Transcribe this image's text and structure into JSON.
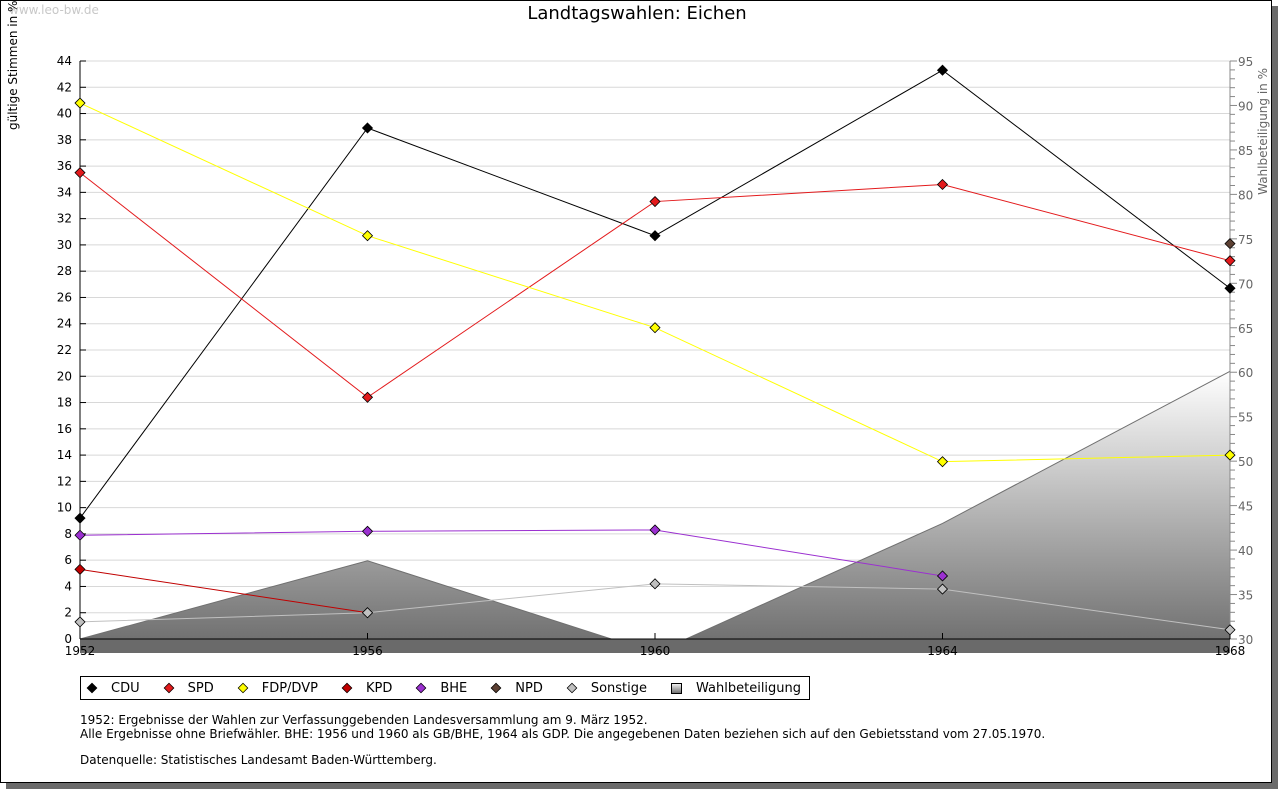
{
  "watermark": "www.leo-bw.de",
  "chart_data": {
    "type": "line",
    "title": "Landtagswahlen: Eichen",
    "xlabel": "",
    "ylabel": "gültige Stimmen in %",
    "ylabel_right": "Wahlbeteiligung in %",
    "x": [
      1952,
      1956,
      1960,
      1964,
      1968
    ],
    "x_tick_labels": [
      "1952",
      "1956",
      "1960",
      "1964",
      "1968"
    ],
    "ylim": [
      0,
      44
    ],
    "y_ticks": [
      0,
      2,
      4,
      6,
      8,
      10,
      12,
      14,
      16,
      18,
      20,
      22,
      24,
      26,
      28,
      30,
      32,
      34,
      36,
      38,
      40,
      42,
      44
    ],
    "ylim_right": [
      30,
      95
    ],
    "y_ticks_right": [
      30,
      35,
      40,
      45,
      50,
      55,
      60,
      65,
      70,
      75,
      80,
      85,
      90,
      95
    ],
    "grid": true,
    "legend_position": "bottom",
    "series": [
      {
        "name": "CDU",
        "color": "#000000",
        "values": [
          9.2,
          38.9,
          30.7,
          43.3,
          26.7
        ]
      },
      {
        "name": "SPD",
        "color": "#e31a1c",
        "values": [
          35.5,
          18.4,
          33.3,
          34.6,
          28.8
        ]
      },
      {
        "name": "FDP/DVP",
        "color": "#ffff00",
        "values": [
          40.8,
          30.7,
          23.7,
          13.5,
          14.0
        ]
      },
      {
        "name": "KPD",
        "color": "#c00000",
        "values": [
          5.3,
          2.0,
          null,
          null,
          null
        ]
      },
      {
        "name": "BHE",
        "color": "#9b30d0",
        "values": [
          7.9,
          8.2,
          8.3,
          4.8,
          null
        ]
      },
      {
        "name": "NPD",
        "color": "#5c4033",
        "values": [
          null,
          null,
          null,
          null,
          30.1
        ]
      },
      {
        "name": "Sonstige",
        "color": "#c0c0c0",
        "values": [
          1.3,
          2.0,
          4.2,
          3.8,
          0.7
        ]
      }
    ],
    "turnout": {
      "name": "Wahlbeteiligung",
      "axis": "right",
      "type": "area",
      "values": [
        30.0,
        38.8,
        28.4,
        43.0,
        60.1
      ]
    }
  },
  "legend": [
    {
      "label": "CDU",
      "color": "#000000",
      "shape": "diamond"
    },
    {
      "label": "SPD",
      "color": "#e31a1c",
      "shape": "diamond"
    },
    {
      "label": "FDP/DVP",
      "color": "#ffff00",
      "shape": "diamond"
    },
    {
      "label": "KPD",
      "color": "#c00000",
      "shape": "diamond"
    },
    {
      "label": "BHE",
      "color": "#9b30d0",
      "shape": "diamond"
    },
    {
      "label": "NPD",
      "color": "#5c4033",
      "shape": "diamond"
    },
    {
      "label": "Sonstige",
      "color": "#c0c0c0",
      "shape": "diamond"
    },
    {
      "label": "Wahlbeteiligung",
      "color": "#a0a0a0",
      "shape": "square"
    }
  ],
  "notes": {
    "line1": "1952: Ergebnisse der Wahlen zur Verfassunggebenden Landesversammlung am 9. März 1952.",
    "line2": "Alle Ergebnisse ohne Briefwähler. BHE: 1956 und 1960 als GB/BHE, 1964 als GDP. Die angegebenen Daten beziehen sich auf den Gebietsstand vom 27.05.1970.",
    "source": "Datenquelle: Statistisches Landesamt Baden-Württemberg."
  }
}
